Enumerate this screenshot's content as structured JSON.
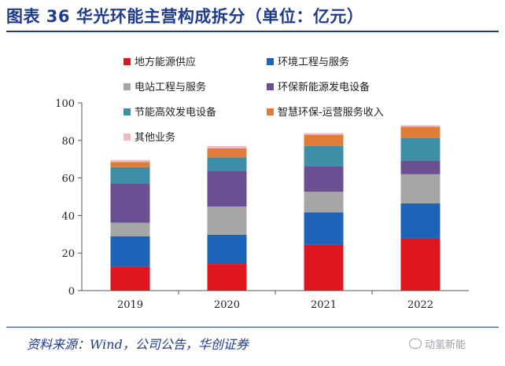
{
  "header": {
    "title": "图表 36 华光环能主营构成拆分（单位：亿元）"
  },
  "footer": {
    "source": "资料来源：Wind，公司公告，华创证券",
    "watermark": "动氢新能"
  },
  "chart_data": {
    "type": "bar",
    "stacked": true,
    "categories": [
      "2019",
      "2020",
      "2021",
      "2022"
    ],
    "ylim": [
      0,
      100
    ],
    "yticks": [
      0,
      20,
      40,
      60,
      80,
      100
    ],
    "grid": false,
    "legend_position": "top",
    "series": [
      {
        "name": "地方能源供应",
        "color": "#e0161f",
        "values": [
          12.8,
          14.2,
          24.3,
          28.0
        ]
      },
      {
        "name": "环境工程与服务",
        "color": "#1d63b8",
        "values": [
          16.2,
          15.6,
          17.4,
          18.5
        ]
      },
      {
        "name": "电站工程与服务",
        "color": "#a6a6a6",
        "values": [
          7.2,
          15.0,
          10.9,
          15.5
        ]
      },
      {
        "name": "环保新能源发电设备",
        "color": "#6b4f93",
        "values": [
          21.0,
          18.8,
          13.5,
          7.2
        ]
      },
      {
        "name": "节能高效发电设备",
        "color": "#3c8fa6",
        "values": [
          8.6,
          7.4,
          11.0,
          12.0
        ]
      },
      {
        "name": "智慧环保-运营服务收入",
        "color": "#e07b39",
        "values": [
          2.7,
          4.8,
          5.9,
          6.1
        ]
      },
      {
        "name": "其他业务",
        "color": "#f0b8bf",
        "values": [
          1.1,
          1.2,
          0.9,
          0.8
        ]
      }
    ]
  }
}
